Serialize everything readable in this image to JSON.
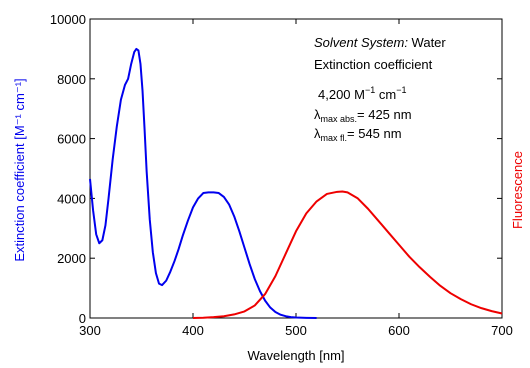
{
  "chart_data": {
    "type": "line",
    "xlabel": "Wavelength [nm]",
    "ylabel": "Extinction coefficient [M⁻¹ cm⁻¹]",
    "ylabel_right": "Fluorescence",
    "xlim": [
      300,
      700
    ],
    "ylim": [
      0,
      10000
    ],
    "x_ticks": [
      300,
      400,
      500,
      600,
      700
    ],
    "y_ticks": [
      0,
      2000,
      4000,
      6000,
      8000,
      10000
    ],
    "grid": false,
    "legend": "none",
    "annotation": {
      "solvent_label": "Solvent System:",
      "solvent_value": " Water",
      "ext_label": "Extinction coefficient",
      "ext_value": "4,200 M",
      "ext_unit_sup1": "−1",
      "ext_unit_mid": " cm",
      "ext_unit_sup2": "−1",
      "lambda": "λ",
      "abs_sub": "max abs.",
      "abs_value": "= 425 nm",
      "fl_sub": "max fl.",
      "fl_value": "= 545 nm"
    },
    "series": [
      {
        "color": "#0000ee",
        "x": [
          300,
          303,
          306,
          309,
          312,
          315,
          318,
          322,
          326,
          330,
          334,
          337,
          340,
          343,
          345,
          347,
          349,
          351,
          353,
          355,
          358,
          361,
          364,
          367,
          370,
          374,
          378,
          382,
          386,
          390,
          395,
          400,
          405,
          410,
          415,
          420,
          425,
          430,
          435,
          440,
          445,
          450,
          455,
          460,
          465,
          470,
          475,
          480,
          485,
          490,
          495,
          500,
          510,
          520
        ],
        "y": [
          4650,
          3600,
          2800,
          2500,
          2600,
          3100,
          4000,
          5300,
          6400,
          7300,
          7800,
          8000,
          8500,
          8900,
          9000,
          8950,
          8500,
          7600,
          6300,
          4900,
          3300,
          2200,
          1500,
          1150,
          1100,
          1250,
          1550,
          1900,
          2300,
          2750,
          3250,
          3700,
          4000,
          4180,
          4200,
          4200,
          4180,
          4050,
          3800,
          3400,
          2900,
          2350,
          1800,
          1300,
          900,
          580,
          350,
          200,
          110,
          60,
          30,
          15,
          5,
          0
        ]
      },
      {
        "color": "#ee0000",
        "x": [
          400,
          410,
          420,
          430,
          440,
          450,
          460,
          470,
          480,
          490,
          500,
          510,
          520,
          530,
          540,
          545,
          550,
          560,
          570,
          580,
          590,
          600,
          610,
          620,
          630,
          640,
          650,
          660,
          670,
          680,
          690,
          700
        ],
        "y": [
          0,
          10,
          30,
          60,
          120,
          220,
          420,
          800,
          1400,
          2150,
          2900,
          3500,
          3900,
          4150,
          4220,
          4230,
          4200,
          4000,
          3650,
          3250,
          2850,
          2450,
          2050,
          1700,
          1380,
          1080,
          830,
          630,
          460,
          330,
          230,
          150
        ]
      }
    ]
  }
}
